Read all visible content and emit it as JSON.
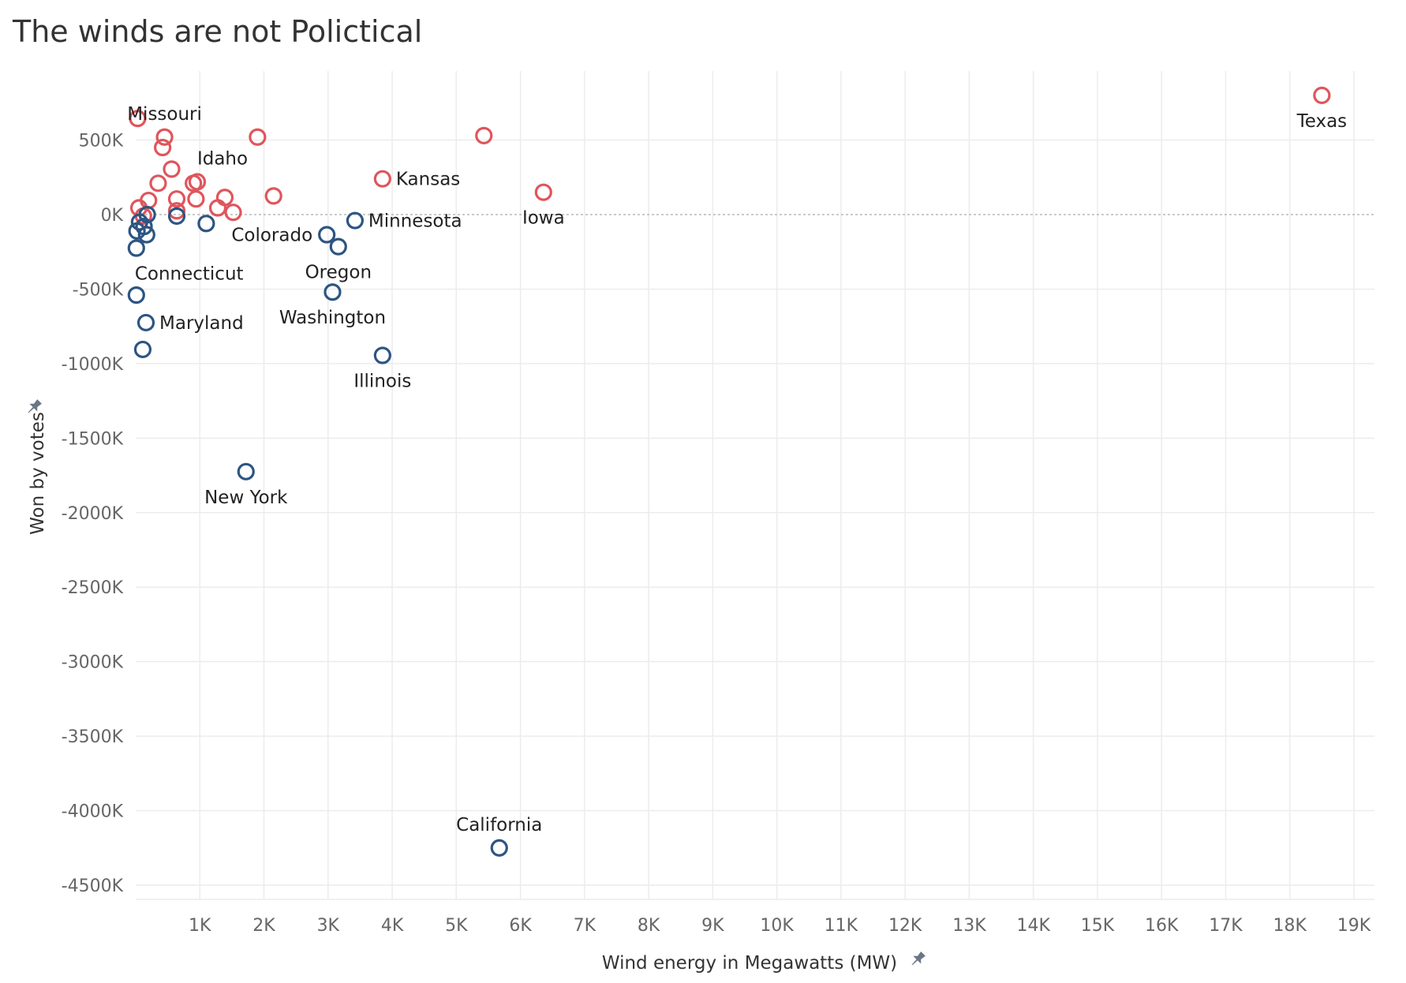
{
  "chart_data": {
    "type": "scatter",
    "title": "The winds are not Polictical",
    "xlabel": "Wind energy in Megawatts (MW)",
    "ylabel": "Won by votes",
    "xlim": [
      0,
      19000
    ],
    "ylim": [
      -4600000,
      900000
    ],
    "grid": true,
    "x_ticks": [
      {
        "value": 1000,
        "label": "1K"
      },
      {
        "value": 2000,
        "label": "2K"
      },
      {
        "value": 3000,
        "label": "3K"
      },
      {
        "value": 4000,
        "label": "4K"
      },
      {
        "value": 5000,
        "label": "5K"
      },
      {
        "value": 6000,
        "label": "6K"
      },
      {
        "value": 7000,
        "label": "7K"
      },
      {
        "value": 8000,
        "label": "8K"
      },
      {
        "value": 9000,
        "label": "9K"
      },
      {
        "value": 10000,
        "label": "10K"
      },
      {
        "value": 11000,
        "label": "11K"
      },
      {
        "value": 12000,
        "label": "12K"
      },
      {
        "value": 13000,
        "label": "13K"
      },
      {
        "value": 14000,
        "label": "14K"
      },
      {
        "value": 15000,
        "label": "15K"
      },
      {
        "value": 16000,
        "label": "16K"
      },
      {
        "value": 17000,
        "label": "17K"
      },
      {
        "value": 18000,
        "label": "18K"
      },
      {
        "value": 19000,
        "label": "19K"
      }
    ],
    "y_ticks": [
      {
        "value": 500000,
        "label": "500K"
      },
      {
        "value": 0,
        "label": "0K"
      },
      {
        "value": -500000,
        "label": "-500K"
      },
      {
        "value": -1000000,
        "label": "-1000K"
      },
      {
        "value": -1500000,
        "label": "-1500K"
      },
      {
        "value": -2000000,
        "label": "-2000K"
      },
      {
        "value": -2500000,
        "label": "-2500K"
      },
      {
        "value": -3000000,
        "label": "-3000K"
      },
      {
        "value": -3500000,
        "label": "-3500K"
      },
      {
        "value": -4000000,
        "label": "-4000K"
      },
      {
        "value": -4500000,
        "label": "-4500K"
      }
    ],
    "colors": {
      "red": "#e0555c",
      "blue": "#2d5582"
    },
    "points": [
      {
        "x": 18500,
        "y": 800000,
        "color": "red",
        "label": "Texas",
        "label_pos": "below"
      },
      {
        "x": 30,
        "y": 645000,
        "color": "red",
        "label": "",
        "label_pos": "none"
      },
      {
        "x": 450,
        "y": 520000,
        "color": "red",
        "label": "Missouri",
        "label_pos": "above"
      },
      {
        "x": 1900,
        "y": 520000,
        "color": "red",
        "label": "",
        "label_pos": "none"
      },
      {
        "x": 5430,
        "y": 530000,
        "color": "red",
        "label": "",
        "label_pos": "none"
      },
      {
        "x": 420,
        "y": 450000,
        "color": "red",
        "label": "",
        "label_pos": "none"
      },
      {
        "x": 560,
        "y": 305000,
        "color": "red",
        "label": "",
        "label_pos": "none"
      },
      {
        "x": 960,
        "y": 220000,
        "color": "red",
        "label": "Idaho",
        "label_pos": "above-right"
      },
      {
        "x": 900,
        "y": 210000,
        "color": "red",
        "label": "",
        "label_pos": "none"
      },
      {
        "x": 350,
        "y": 210000,
        "color": "red",
        "label": "",
        "label_pos": "none"
      },
      {
        "x": 3850,
        "y": 240000,
        "color": "red",
        "label": "Kansas",
        "label_pos": "right"
      },
      {
        "x": 6360,
        "y": 150000,
        "color": "red",
        "label": "Iowa",
        "label_pos": "below"
      },
      {
        "x": 2150,
        "y": 125000,
        "color": "red",
        "label": "",
        "label_pos": "none"
      },
      {
        "x": 200,
        "y": 95000,
        "color": "red",
        "label": "",
        "label_pos": "none"
      },
      {
        "x": 640,
        "y": 105000,
        "color": "red",
        "label": "",
        "label_pos": "none"
      },
      {
        "x": 940,
        "y": 105000,
        "color": "red",
        "label": "",
        "label_pos": "none"
      },
      {
        "x": 1390,
        "y": 115000,
        "color": "red",
        "label": "",
        "label_pos": "none"
      },
      {
        "x": 1280,
        "y": 45000,
        "color": "red",
        "label": "",
        "label_pos": "none"
      },
      {
        "x": 1520,
        "y": 15000,
        "color": "red",
        "label": "",
        "label_pos": "none"
      },
      {
        "x": 640,
        "y": 25000,
        "color": "red",
        "label": "",
        "label_pos": "none"
      },
      {
        "x": 50,
        "y": 45000,
        "color": "red",
        "label": "",
        "label_pos": "none"
      },
      {
        "x": 120,
        "y": -10000,
        "color": "red",
        "label": "",
        "label_pos": "none"
      },
      {
        "x": 3420,
        "y": -40000,
        "color": "blue",
        "label": "Minnesota",
        "label_pos": "right"
      },
      {
        "x": 180,
        "y": 0,
        "color": "blue",
        "label": "",
        "label_pos": "none"
      },
      {
        "x": 640,
        "y": -10000,
        "color": "blue",
        "label": "",
        "label_pos": "none"
      },
      {
        "x": 1100,
        "y": -60000,
        "color": "blue",
        "label": "",
        "label_pos": "none"
      },
      {
        "x": 60,
        "y": -50000,
        "color": "blue",
        "label": "",
        "label_pos": "none"
      },
      {
        "x": 130,
        "y": -80000,
        "color": "blue",
        "label": "",
        "label_pos": "none"
      },
      {
        "x": 20,
        "y": -110000,
        "color": "blue",
        "label": "",
        "label_pos": "none"
      },
      {
        "x": 170,
        "y": -135000,
        "color": "blue",
        "label": "",
        "label_pos": "none"
      },
      {
        "x": 2980,
        "y": -135000,
        "color": "blue",
        "label": "Colorado",
        "label_pos": "left"
      },
      {
        "x": 3160,
        "y": -215000,
        "color": "blue",
        "label": "Oregon",
        "label_pos": "below"
      },
      {
        "x": 10,
        "y": -225000,
        "color": "blue",
        "label": "Connecticut",
        "label_pos": "below-right"
      },
      {
        "x": 10,
        "y": -540000,
        "color": "blue",
        "label": "",
        "label_pos": "none"
      },
      {
        "x": 3070,
        "y": -520000,
        "color": "blue",
        "label": "Washington",
        "label_pos": "below"
      },
      {
        "x": 160,
        "y": -725000,
        "color": "blue",
        "label": "Maryland",
        "label_pos": "right"
      },
      {
        "x": 110,
        "y": -905000,
        "color": "blue",
        "label": "",
        "label_pos": "none"
      },
      {
        "x": 3850,
        "y": -945000,
        "color": "blue",
        "label": "Illinois",
        "label_pos": "below"
      },
      {
        "x": 1720,
        "y": -1725000,
        "color": "blue",
        "label": "New York",
        "label_pos": "below"
      },
      {
        "x": 5670,
        "y": -4250000,
        "color": "blue",
        "label": "California",
        "label_pos": "above"
      }
    ]
  }
}
